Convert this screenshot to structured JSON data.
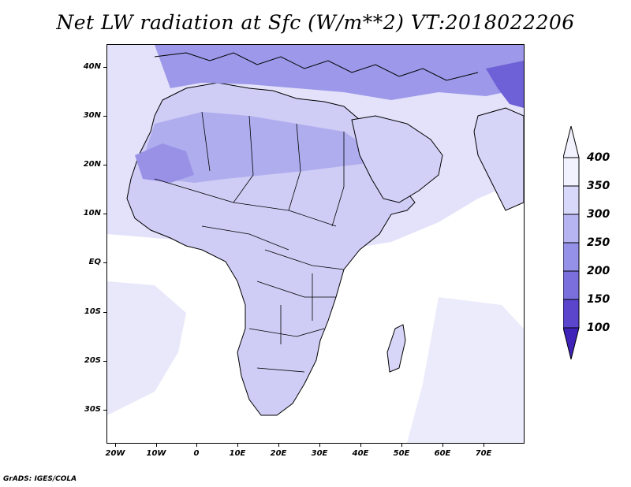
{
  "title": "Net LW radiation at Sfc (W/m**2) VT:2018022206",
  "footer": "GrADS: IGES/COLA",
  "map": {
    "region": "Africa and Middle East",
    "projection": "lat-lon",
    "lon_range": [
      -23,
      80
    ],
    "lat_range": [
      -37,
      45
    ],
    "lat_labels": [
      "40N",
      "30N",
      "20N",
      "10N",
      "EQ",
      "10S",
      "20S",
      "30S"
    ],
    "lon_labels": [
      "20W",
      "10W",
      "0",
      "10E",
      "20E",
      "30E",
      "40E",
      "50E",
      "60E",
      "70E"
    ],
    "ocean_color": "#ffffff",
    "border_color": "#000000"
  },
  "colorbar": {
    "labels": [
      "400",
      "350",
      "300",
      "250",
      "200",
      "150",
      "100"
    ],
    "colors": [
      "#f2f2ff",
      "#d8d8fa",
      "#b7b4f2",
      "#9590e8",
      "#7a6fdc",
      "#5a45cc",
      "#3f22b8"
    ],
    "extend": "both"
  }
}
